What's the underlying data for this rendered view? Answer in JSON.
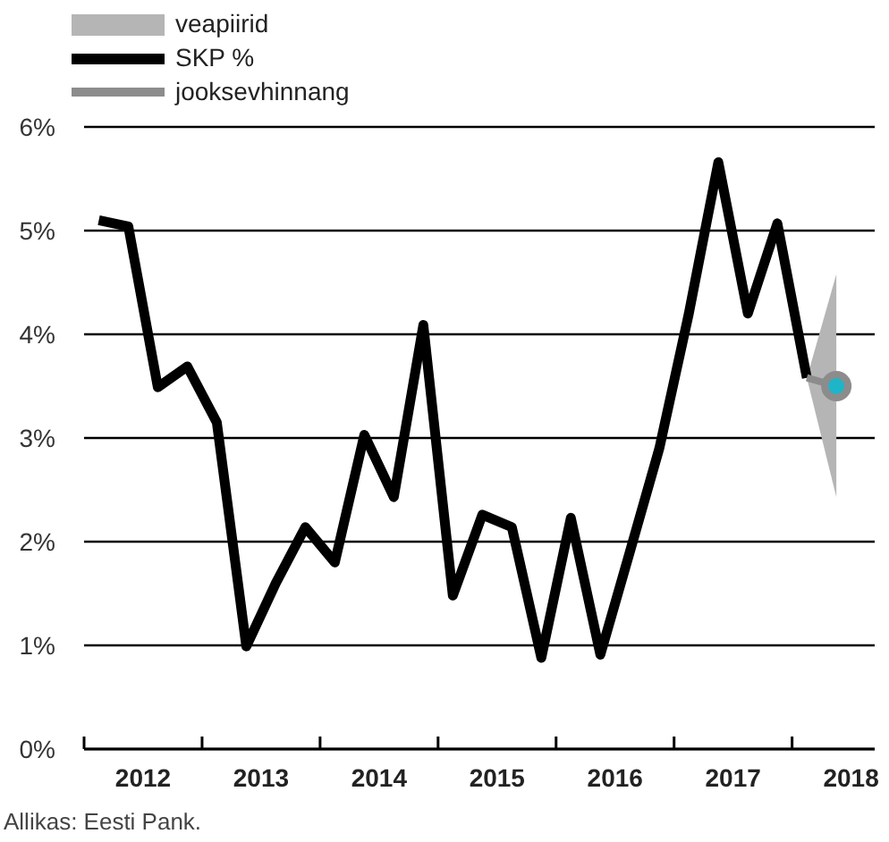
{
  "chart_data": {
    "type": "line",
    "xlim": [
      2012,
      2018.7
    ],
    "xticks": [
      {
        "value": 2012,
        "label": null
      },
      {
        "value": 2012.5,
        "label": "2012"
      },
      {
        "value": 2013,
        "label": null
      },
      {
        "value": 2013.5,
        "label": "2013"
      },
      {
        "value": 2014,
        "label": null
      },
      {
        "value": 2014.5,
        "label": "2014"
      },
      {
        "value": 2015,
        "label": null
      },
      {
        "value": 2015.5,
        "label": "2015"
      },
      {
        "value": 2016,
        "label": null
      },
      {
        "value": 2016.5,
        "label": "2016"
      },
      {
        "value": 2017,
        "label": null
      },
      {
        "value": 2017.5,
        "label": "2017"
      },
      {
        "value": 2018,
        "label": null
      },
      {
        "value": 2018.5,
        "label": "2018"
      }
    ],
    "ylim": [
      0,
      6
    ],
    "yticks": [
      {
        "value": 0,
        "label": "0%"
      },
      {
        "value": 1,
        "label": "1%"
      },
      {
        "value": 2,
        "label": "2%"
      },
      {
        "value": 3,
        "label": "3%"
      },
      {
        "value": 4,
        "label": "4%"
      },
      {
        "value": 5,
        "label": "5%"
      },
      {
        "value": 6,
        "label": "6%"
      }
    ],
    "grid": "y",
    "legend": "top left",
    "line_style": "solid",
    "series": [
      {
        "name": "veapiirid",
        "type": "area",
        "color": "#b5b5b5"
      },
      {
        "name": "SKP %",
        "color": "#000000",
        "marker": "none",
        "x": [
          2012.125,
          2012.375,
          2012.625,
          2012.875,
          2013.125,
          2013.375,
          2013.625,
          2013.875,
          2014.125,
          2014.375,
          2014.625,
          2014.875,
          2015.125,
          2015.375,
          2015.625,
          2015.875,
          2016.125,
          2016.375,
          2016.625,
          2016.875,
          2017.125,
          2017.375,
          2017.625,
          2017.875,
          2018.125
        ],
        "values": [
          5.1,
          5.04,
          3.49,
          3.69,
          3.15,
          0.99,
          1.6,
          2.14,
          1.8,
          3.03,
          2.43,
          4.09,
          1.48,
          2.26,
          2.14,
          0.88,
          2.23,
          0.91,
          1.9,
          2.9,
          4.2,
          5.66,
          4.2,
          5.07,
          3.58
        ]
      },
      {
        "name": "jooksevhinnang",
        "color": "#8c8c8c",
        "marker": "circle",
        "colors": [
          null,
          "#1fb5c8"
        ],
        "x": [
          2018.125,
          2018.375
        ],
        "values": [
          3.58,
          3.5
        ],
        "lower": [
          3.58,
          2.43
        ],
        "upper": [
          3.58,
          4.58
        ]
      }
    ],
    "annotations": [
      "Allikas: Eesti Pank."
    ]
  }
}
